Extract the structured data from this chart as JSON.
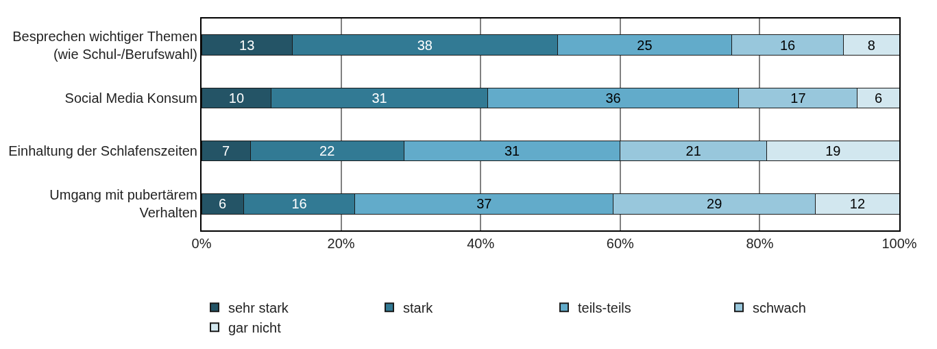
{
  "chart_data": {
    "type": "bar",
    "orientation": "horizontal",
    "stacked": true,
    "data_labels": true,
    "grid": "x",
    "legend": "bottom",
    "categories": [
      "Besprechen wichtiger Themen\n(wie Schul-/Berufswahl)",
      "Social Media Konsum",
      "Einhaltung der Schlafenszeiten",
      "Umgang mit pubertärem\nVerhalten"
    ],
    "series": [
      {
        "name": "sehr stark",
        "color": "#245466",
        "values": [
          13,
          10,
          7,
          6
        ]
      },
      {
        "name": "stark",
        "color": "#327a94",
        "values": [
          38,
          31,
          22,
          16
        ]
      },
      {
        "name": "teils-teils",
        "color": "#62abca",
        "values": [
          25,
          36,
          31,
          37
        ]
      },
      {
        "name": "schwach",
        "color": "#98c7dc",
        "values": [
          16,
          17,
          21,
          29
        ]
      },
      {
        "name": "gar nicht",
        "color": "#d2e7ef",
        "values": [
          8,
          6,
          19,
          12
        ]
      }
    ],
    "xlim": [
      0,
      100
    ],
    "xticks": [
      {
        "value": 0,
        "label": "0%"
      },
      {
        "value": 20,
        "label": "20%"
      },
      {
        "value": 40,
        "label": "40%"
      },
      {
        "value": 60,
        "label": "60%"
      },
      {
        "value": 80,
        "label": "80%"
      },
      {
        "value": 100,
        "label": "100%"
      }
    ]
  }
}
